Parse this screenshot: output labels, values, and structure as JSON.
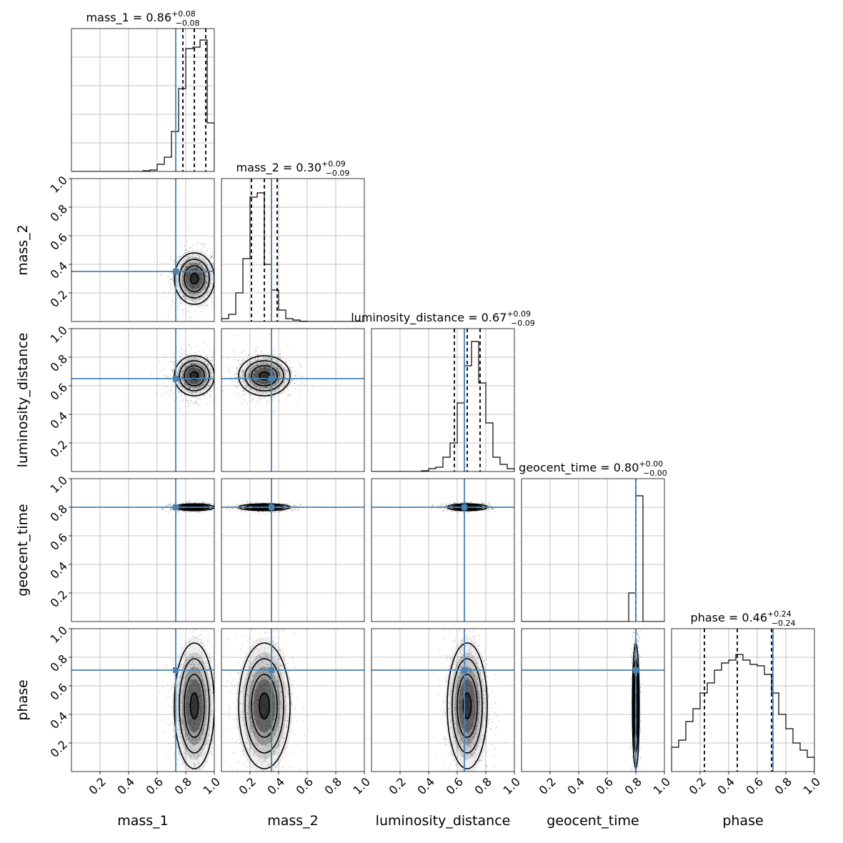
{
  "chart_data": {
    "type": "corner",
    "grid": true,
    "colors": {
      "truth": "#4682b4",
      "hist": "#000000",
      "density": "#000000",
      "grid": "#b0b0b0",
      "frame": "#000000"
    },
    "parameters": [
      {
        "name": "mass_1",
        "truth": 0.73,
        "median": 0.86,
        "lower": 0.78,
        "upper": 0.94,
        "title": "mass_1 = 0.86",
        "err_plus": "+0.08",
        "err_minus": "−0.08"
      },
      {
        "name": "mass_2",
        "truth": 0.35,
        "median": 0.3,
        "lower": 0.21,
        "upper": 0.39,
        "title": "mass_2 = 0.30",
        "err_plus": "+0.09",
        "err_minus": "−0.09"
      },
      {
        "name": "luminosity_distance",
        "truth": 0.65,
        "median": 0.67,
        "lower": 0.58,
        "upper": 0.76,
        "title": "luminosity_distance = 0.67",
        "err_plus": "+0.09",
        "err_minus": "−0.09"
      },
      {
        "name": "geocent_time",
        "truth": 0.8,
        "median": 0.8,
        "lower": 0.8,
        "upper": 0.8,
        "title": "geocent_time = 0.80",
        "err_plus": "+0.00",
        "err_minus": "−0.00"
      },
      {
        "name": "phase",
        "truth": 0.71,
        "median": 0.46,
        "lower": 0.23,
        "upper": 0.7,
        "title": "phase = 0.46",
        "err_plus": "+0.24",
        "err_minus": "−0.24"
      }
    ],
    "spread": [
      0.07,
      0.09,
      0.07,
      0.012,
      0.22
    ],
    "hist_bins": 20,
    "histograms": [
      [
        0,
        0,
        0,
        0,
        0,
        0,
        0,
        0,
        0,
        0,
        0.005,
        0.01,
        0.05,
        0.1,
        0.28,
        0.58,
        0.86,
        0.87,
        0.92,
        0.34
      ],
      [
        0.02,
        0.05,
        0.2,
        0.44,
        0.87,
        0.9,
        0.4,
        0.22,
        0.08,
        0.02,
        0.01,
        0.002,
        0,
        0,
        0,
        0,
        0,
        0,
        0,
        0
      ],
      [
        0,
        0,
        0,
        0,
        0,
        0,
        0,
        0.005,
        0.02,
        0.03,
        0.1,
        0.2,
        0.48,
        0.74,
        0.91,
        0.62,
        0.34,
        0.1,
        0.05,
        0.02
      ],
      [
        0,
        0,
        0,
        0,
        0,
        0,
        0,
        0,
        0,
        0,
        0,
        0,
        0,
        0,
        0,
        0.2,
        0.88,
        0,
        0,
        0
      ],
      [
        0.17,
        0.22,
        0.35,
        0.44,
        0.55,
        0.62,
        0.71,
        0.76,
        0.78,
        0.82,
        0.78,
        0.75,
        0.74,
        0.68,
        0.55,
        0.4,
        0.3,
        0.2,
        0.15,
        0.1
      ]
    ],
    "axis_range": [
      0,
      1
    ],
    "ticks": [
      0.2,
      0.4,
      0.6,
      0.8,
      1.0
    ],
    "tick_labels": [
      "0.2",
      "0.4",
      "0.6",
      "0.8",
      "1.0"
    ],
    "contour_levels": [
      0.4,
      1.0,
      1.5,
      2.0
    ]
  }
}
